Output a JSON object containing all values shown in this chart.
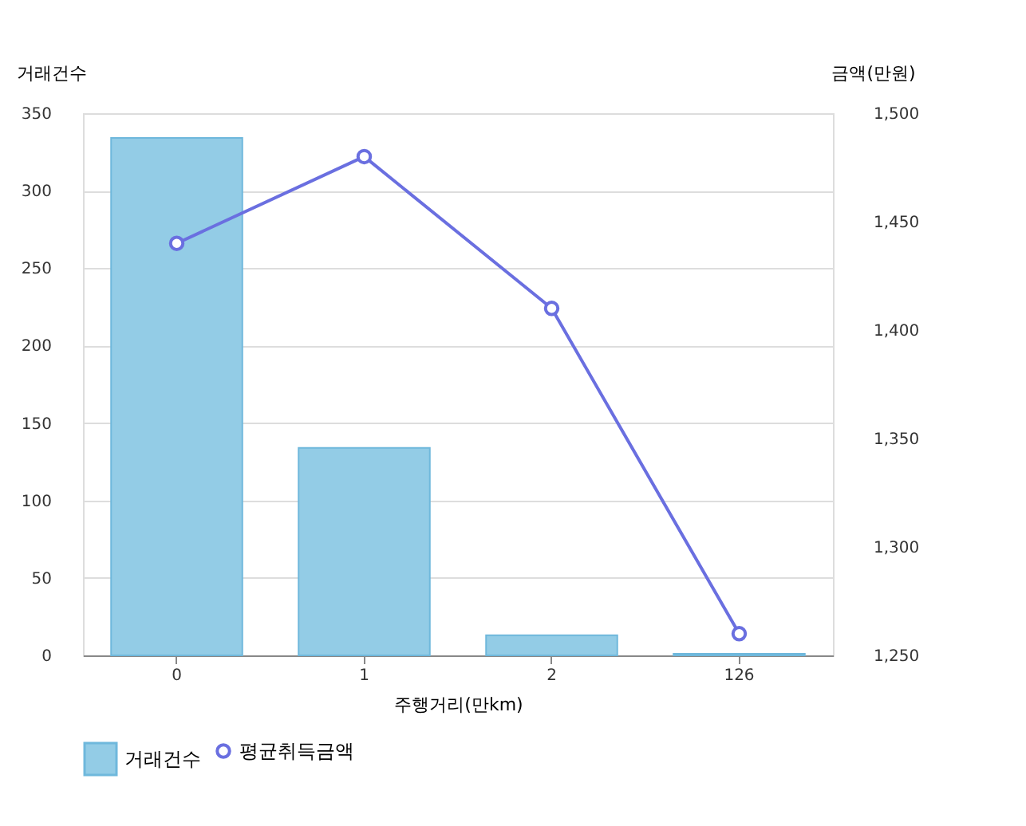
{
  "chart_data": {
    "type": "bar",
    "categories": [
      "0",
      "1",
      "2",
      "126"
    ],
    "xlabel": "주행거리(만km)",
    "ylabel": "거래건수",
    "y2label": "금액(만원)",
    "series": [
      {
        "name": "거래건수",
        "color": "#93cce6",
        "values": [
          334,
          134,
          13,
          1
        ]
      },
      {
        "name": "평균취득금액",
        "type": "line",
        "axis": "y2",
        "color": "#6a6fe0",
        "values": [
          1440,
          1480,
          1410,
          1260
        ]
      }
    ],
    "ylim": [
      0,
      350
    ],
    "yticks": [
      0,
      50,
      100,
      150,
      200,
      250,
      300,
      350
    ],
    "y2lim": [
      1250,
      1500
    ],
    "y2ticks": [
      {
        "value": 1250,
        "label": "1,250"
      },
      {
        "value": 1300,
        "label": "1,300"
      },
      {
        "value": 1350,
        "label": "1,350"
      },
      {
        "value": 1400,
        "label": "1,400"
      },
      {
        "value": 1450,
        "label": "1,450"
      },
      {
        "value": 1500,
        "label": "1,500"
      }
    ],
    "grid": "y",
    "legend": "bottom",
    "marker": "circle"
  }
}
